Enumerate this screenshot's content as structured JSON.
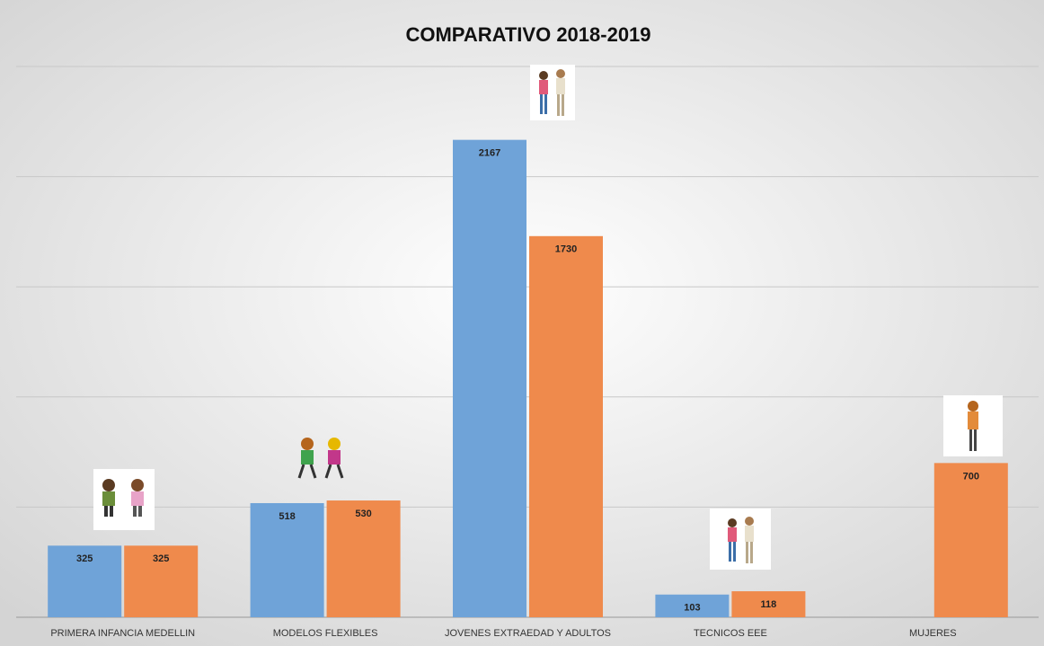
{
  "chart_data": {
    "type": "bar",
    "title": "COMPARATIVO 2018-2019",
    "categories": [
      "PRIMERA INFANCIA MEDELLIN",
      "MODELOS FLEXIBLES",
      "JOVENES EXTRAEDAD Y ADULTOS",
      "TECNICOS EEE",
      "MUJERES"
    ],
    "series": [
      {
        "color": "#6fa3d8",
        "values": [
          325,
          518,
          2167,
          103,
          null
        ]
      },
      {
        "color": "#ef8a4c",
        "values": [
          325,
          530,
          1730,
          118,
          700
        ]
      }
    ],
    "ylim": [
      0,
      2500
    ],
    "yticks": [
      0,
      500,
      1000,
      1500,
      2000,
      2500
    ],
    "grid": true
  }
}
